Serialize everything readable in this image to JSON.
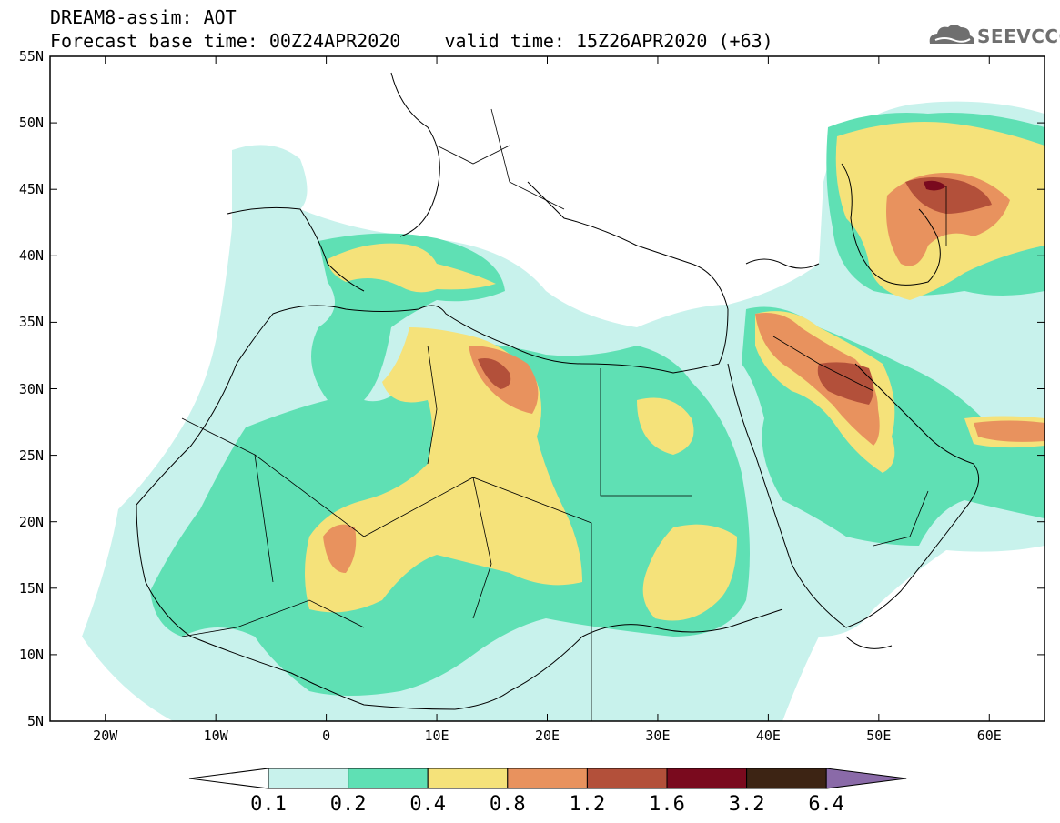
{
  "title": {
    "line1": "DREAM8-assim: AOT",
    "line2_base": "Forecast base time: 00Z24APR2020",
    "line2_valid": "valid time: 15Z26APR2020 (+63)"
  },
  "logo": {
    "text": "SEEVCCC",
    "icon": "cloud-logo-icon"
  },
  "map": {
    "lon_range": [
      -25,
      65
    ],
    "lat_range": [
      5,
      55
    ],
    "lat_ticks": [
      {
        "value": 55,
        "label": "55N"
      },
      {
        "value": 50,
        "label": "50N"
      },
      {
        "value": 45,
        "label": "45N"
      },
      {
        "value": 40,
        "label": "40N"
      },
      {
        "value": 35,
        "label": "35N"
      },
      {
        "value": 30,
        "label": "30N"
      },
      {
        "value": 25,
        "label": "25N"
      },
      {
        "value": 20,
        "label": "20N"
      },
      {
        "value": 15,
        "label": "15N"
      },
      {
        "value": 10,
        "label": "10N"
      },
      {
        "value": 5,
        "label": "5N"
      }
    ],
    "lon_ticks": [
      {
        "value": -20,
        "label": "20W"
      },
      {
        "value": -10,
        "label": "10W"
      },
      {
        "value": 0,
        "label": "0"
      },
      {
        "value": 10,
        "label": "10E"
      },
      {
        "value": 20,
        "label": "20E"
      },
      {
        "value": 30,
        "label": "30E"
      },
      {
        "value": 40,
        "label": "40E"
      },
      {
        "value": 50,
        "label": "50E"
      },
      {
        "value": 60,
        "label": "60E"
      }
    ]
  },
  "colorbar": {
    "levels": [
      {
        "label": "0.1",
        "color": "#c8f2ec"
      },
      {
        "label": "0.2",
        "color": "#5fe0b4"
      },
      {
        "label": "0.4",
        "color": "#f5e27a"
      },
      {
        "label": "0.8",
        "color": "#e8925e"
      },
      {
        "label": "1.2",
        "color": "#b3503a"
      },
      {
        "label": "1.6",
        "color": "#7a0a1e"
      },
      {
        "label": "3.2",
        "color": "#3d2414"
      },
      {
        "label": "6.4",
        "color": "#8a6aa8"
      }
    ],
    "below_color": "#ffffff"
  }
}
